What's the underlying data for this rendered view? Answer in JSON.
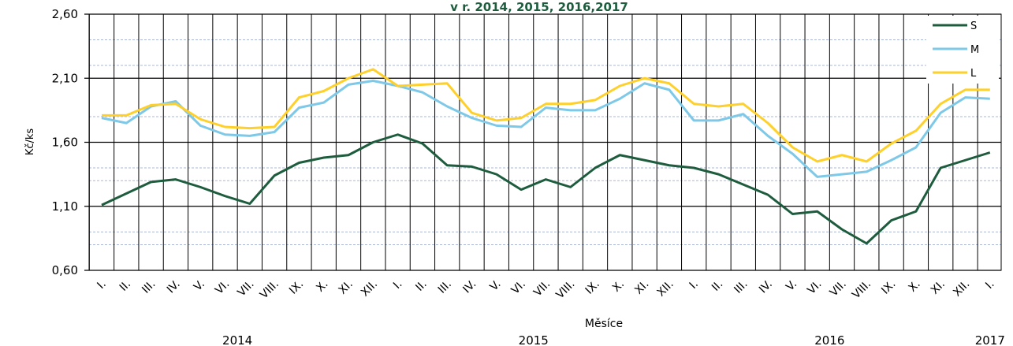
{
  "chart_data": {
    "type": "line",
    "title": "v r. 2014,  2015,  2016,2017",
    "y_label": "Kč/ks",
    "x_label": "Měsíce",
    "categories": [
      "I.",
      "II.",
      "III.",
      "IV.",
      "V.",
      "VI.",
      "VII.",
      "VIII.",
      "IX.",
      "X.",
      "XI.",
      "XII.",
      "I.",
      "II.",
      "III.",
      "IV.",
      "V.",
      "VI.",
      "VII.",
      "VIII.",
      "IX.",
      "X.",
      "XI.",
      "XII.",
      "I.",
      "II.",
      "III.",
      "IV.",
      "V.",
      "VI.",
      "VII.",
      "VIII.",
      "IX.",
      "X.",
      "XI.",
      "XII.",
      "I."
    ],
    "year_labels": [
      "2014",
      "2015",
      "2016",
      "2017"
    ],
    "series": [
      {
        "name": "S",
        "color": "#1e5c3e",
        "values": [
          1.11,
          1.2,
          1.29,
          1.31,
          1.25,
          1.18,
          1.12,
          1.34,
          1.44,
          1.48,
          1.5,
          1.6,
          1.66,
          1.59,
          1.42,
          1.41,
          1.35,
          1.23,
          1.31,
          1.25,
          1.4,
          1.5,
          1.46,
          1.42,
          1.4,
          1.35,
          1.27,
          1.19,
          1.04,
          1.06,
          0.92,
          0.81,
          0.99,
          1.06,
          1.4,
          1.46,
          1.52
        ]
      },
      {
        "name": "M",
        "color": "#7ec8e8",
        "values": [
          1.79,
          1.75,
          1.88,
          1.92,
          1.73,
          1.66,
          1.65,
          1.68,
          1.87,
          1.91,
          2.05,
          2.08,
          2.04,
          1.99,
          1.88,
          1.79,
          1.73,
          1.72,
          1.87,
          1.85,
          1.85,
          1.94,
          2.06,
          2.01,
          1.77,
          1.77,
          1.82,
          1.65,
          1.51,
          1.33,
          1.35,
          1.37,
          1.46,
          1.56,
          1.83,
          1.95,
          1.94
        ]
      },
      {
        "name": "L",
        "color": "#ffd02a",
        "values": [
          1.81,
          1.81,
          1.89,
          1.9,
          1.78,
          1.72,
          1.71,
          1.72,
          1.95,
          2.0,
          2.1,
          2.17,
          2.04,
          2.05,
          2.06,
          1.83,
          1.77,
          1.79,
          1.9,
          1.9,
          1.93,
          2.04,
          2.1,
          2.06,
          1.9,
          1.88,
          1.9,
          1.75,
          1.56,
          1.45,
          1.5,
          1.45,
          1.59,
          1.69,
          1.9,
          2.01,
          2.01
        ]
      }
    ],
    "ylim": [
      0.6,
      2.6
    ],
    "yticks": [
      {
        "value": 0.6,
        "label": "0,60"
      },
      {
        "value": 1.1,
        "label": "1,10"
      },
      {
        "value": 1.6,
        "label": "1,60"
      },
      {
        "value": 2.1,
        "label": "2,10"
      },
      {
        "value": 2.6,
        "label": "2,60"
      }
    ],
    "minor_yticks": [
      2.4,
      2.2,
      1.8,
      1.4,
      1.3,
      0.9,
      0.8
    ],
    "grid": true,
    "legend": "upper right"
  }
}
